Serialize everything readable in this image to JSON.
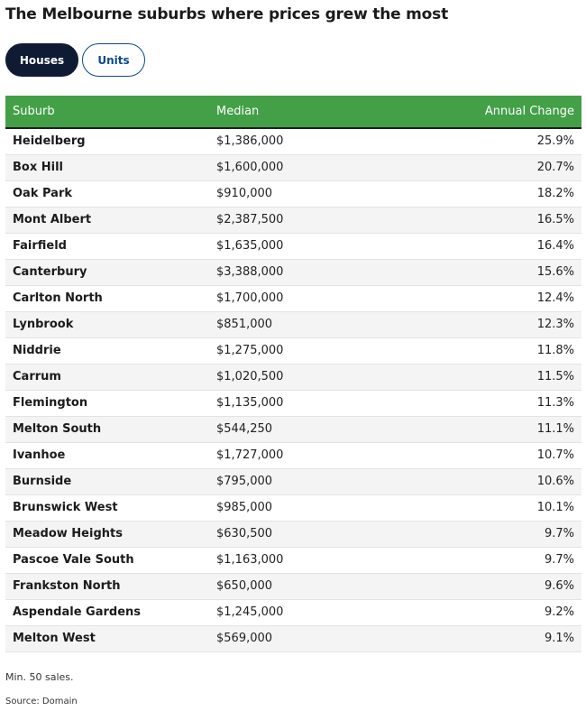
{
  "title": "The Melbourne suburbs where prices grew the most",
  "tabs": [
    {
      "label": "Houses",
      "active": true
    },
    {
      "label": "Units",
      "active": false
    }
  ],
  "table": {
    "headers": {
      "suburb": "Suburb",
      "median": "Median",
      "change": "Annual Change"
    },
    "rows": [
      {
        "suburb": "Heidelberg",
        "median": "$1,386,000",
        "change": "25.9%"
      },
      {
        "suburb": "Box Hill",
        "median": "$1,600,000",
        "change": "20.7%"
      },
      {
        "suburb": "Oak Park",
        "median": "$910,000",
        "change": "18.2%"
      },
      {
        "suburb": "Mont Albert",
        "median": "$2,387,500",
        "change": "16.5%"
      },
      {
        "suburb": "Fairfield",
        "median": "$1,635,000",
        "change": "16.4%"
      },
      {
        "suburb": "Canterbury",
        "median": "$3,388,000",
        "change": "15.6%"
      },
      {
        "suburb": "Carlton North",
        "median": "$1,700,000",
        "change": "12.4%"
      },
      {
        "suburb": "Lynbrook",
        "median": "$851,000",
        "change": "12.3%"
      },
      {
        "suburb": "Niddrie",
        "median": "$1,275,000",
        "change": "11.8%"
      },
      {
        "suburb": "Carrum",
        "median": "$1,020,500",
        "change": "11.5%"
      },
      {
        "suburb": "Flemington",
        "median": "$1,135,000",
        "change": "11.3%"
      },
      {
        "suburb": "Melton South",
        "median": "$544,250",
        "change": "11.1%"
      },
      {
        "suburb": "Ivanhoe",
        "median": "$1,727,000",
        "change": "10.7%"
      },
      {
        "suburb": "Burnside",
        "median": "$795,000",
        "change": "10.6%"
      },
      {
        "suburb": "Brunswick West",
        "median": "$985,000",
        "change": "10.1%"
      },
      {
        "suburb": "Meadow Heights",
        "median": "$630,500",
        "change": "9.7%"
      },
      {
        "suburb": "Pascoe Vale South",
        "median": "$1,163,000",
        "change": "9.7%"
      },
      {
        "suburb": "Frankston North",
        "median": "$650,000",
        "change": "9.6%"
      },
      {
        "suburb": "Aspendale Gardens",
        "median": "$1,245,000",
        "change": "9.2%"
      },
      {
        "suburb": "Melton West",
        "median": "$569,000",
        "change": "9.1%"
      }
    ]
  },
  "note": "Min. 50 sales.",
  "source": "Source: Domain",
  "colors": {
    "header_green": "#43a047",
    "tab_active_bg": "#0f1b33",
    "tab_inactive_text": "#0b4a8c"
  }
}
